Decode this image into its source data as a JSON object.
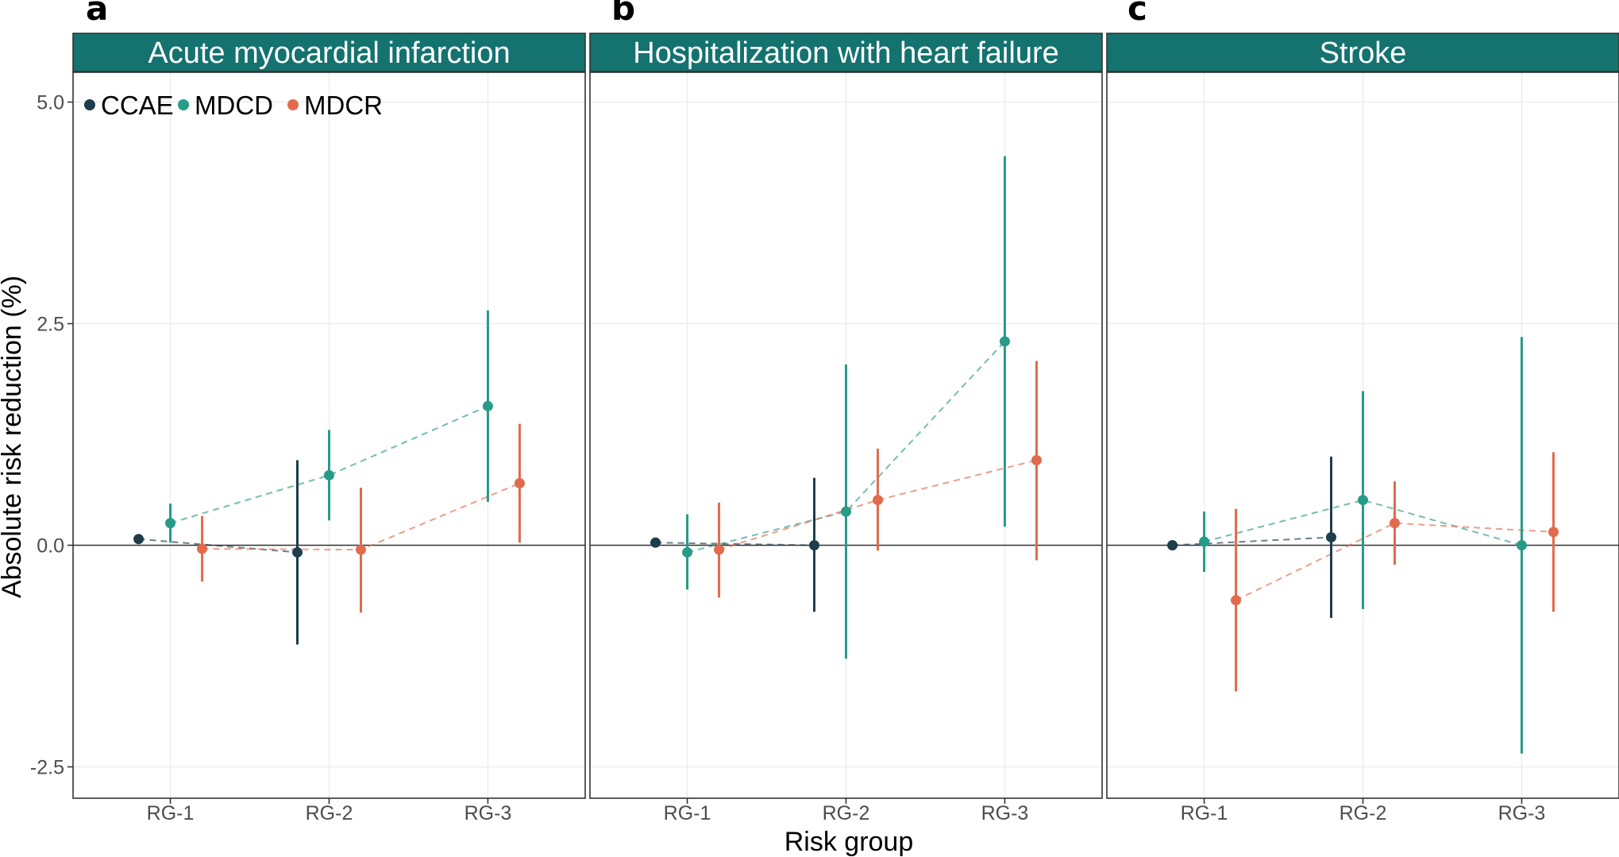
{
  "chart_data": {
    "type": "scatter",
    "ylabel": "Absolute risk reduction (%)",
    "xlabel": "Risk group",
    "categories": [
      "RG-1",
      "RG-2",
      "RG-3"
    ],
    "ylim": [
      -2.85,
      5.2
    ],
    "yticks": [
      -2.5,
      0.0,
      2.5,
      5.0
    ],
    "ytick_labels": [
      "-2.5",
      "0.0",
      "2.5",
      "5.0"
    ],
    "reference_line": 0,
    "legend": {
      "position": "top-left",
      "entries": [
        {
          "name": "CCAE",
          "color": "#1e3d4c"
        },
        {
          "name": "MDCD",
          "color": "#269b88"
        },
        {
          "name": "MDCR",
          "color": "#e16b4c"
        }
      ]
    },
    "colors": {
      "strip_bg": "#14726f",
      "grid": "#ebebeb",
      "panel_border": "#333333",
      "zero_line": "#333333"
    },
    "panels": [
      {
        "letter": "a",
        "title": "Acute myocardial infarction",
        "series": [
          {
            "name": "CCAE",
            "points": [
              {
                "cat": "RG-1",
                "y": 0.07,
                "lo": null,
                "hi": null
              },
              {
                "cat": "RG-2",
                "y": -0.08,
                "lo": -1.12,
                "hi": 0.96
              }
            ]
          },
          {
            "name": "MDCD",
            "points": [
              {
                "cat": "RG-1",
                "y": 0.25,
                "lo": 0.03,
                "hi": 0.47
              },
              {
                "cat": "RG-2",
                "y": 0.79,
                "lo": 0.28,
                "hi": 1.3
              },
              {
                "cat": "RG-3",
                "y": 1.57,
                "lo": 0.49,
                "hi": 2.65
              }
            ]
          },
          {
            "name": "MDCR",
            "points": [
              {
                "cat": "RG-1",
                "y": -0.04,
                "lo": -0.41,
                "hi": 0.33
              },
              {
                "cat": "RG-2",
                "y": -0.05,
                "lo": -0.76,
                "hi": 0.65
              },
              {
                "cat": "RG-3",
                "y": 0.7,
                "lo": 0.03,
                "hi": 1.37
              }
            ]
          }
        ]
      },
      {
        "letter": "b",
        "title": "Hospitalization with heart failure",
        "series": [
          {
            "name": "CCAE",
            "points": [
              {
                "cat": "RG-1",
                "y": 0.03,
                "lo": null,
                "hi": null
              },
              {
                "cat": "RG-2",
                "y": 0.0,
                "lo": -0.75,
                "hi": 0.76
              }
            ]
          },
          {
            "name": "MDCD",
            "points": [
              {
                "cat": "RG-1",
                "y": -0.08,
                "lo": -0.5,
                "hi": 0.35
              },
              {
                "cat": "RG-2",
                "y": 0.38,
                "lo": -1.28,
                "hi": 2.04
              },
              {
                "cat": "RG-3",
                "y": 2.3,
                "lo": 0.21,
                "hi": 4.39
              }
            ]
          },
          {
            "name": "MDCR",
            "points": [
              {
                "cat": "RG-1",
                "y": -0.05,
                "lo": -0.59,
                "hi": 0.48
              },
              {
                "cat": "RG-2",
                "y": 0.51,
                "lo": -0.06,
                "hi": 1.09
              },
              {
                "cat": "RG-3",
                "y": 0.96,
                "lo": -0.17,
                "hi": 2.08
              }
            ]
          }
        ]
      },
      {
        "letter": "c",
        "title": "Stroke",
        "series": [
          {
            "name": "CCAE",
            "points": [
              {
                "cat": "RG-1",
                "y": 0.0,
                "lo": null,
                "hi": null
              },
              {
                "cat": "RG-2",
                "y": 0.09,
                "lo": -0.82,
                "hi": 1.0
              }
            ]
          },
          {
            "name": "MDCD",
            "points": [
              {
                "cat": "RG-1",
                "y": 0.04,
                "lo": -0.3,
                "hi": 0.38
              },
              {
                "cat": "RG-2",
                "y": 0.51,
                "lo": -0.72,
                "hi": 1.74
              },
              {
                "cat": "RG-3",
                "y": 0.0,
                "lo": -2.35,
                "hi": 2.35
              }
            ]
          },
          {
            "name": "MDCR",
            "points": [
              {
                "cat": "RG-1",
                "y": -0.62,
                "lo": -1.65,
                "hi": 0.41
              },
              {
                "cat": "RG-2",
                "y": 0.25,
                "lo": -0.22,
                "hi": 0.72
              },
              {
                "cat": "RG-3",
                "y": 0.15,
                "lo": -0.75,
                "hi": 1.05
              }
            ]
          }
        ]
      }
    ]
  }
}
